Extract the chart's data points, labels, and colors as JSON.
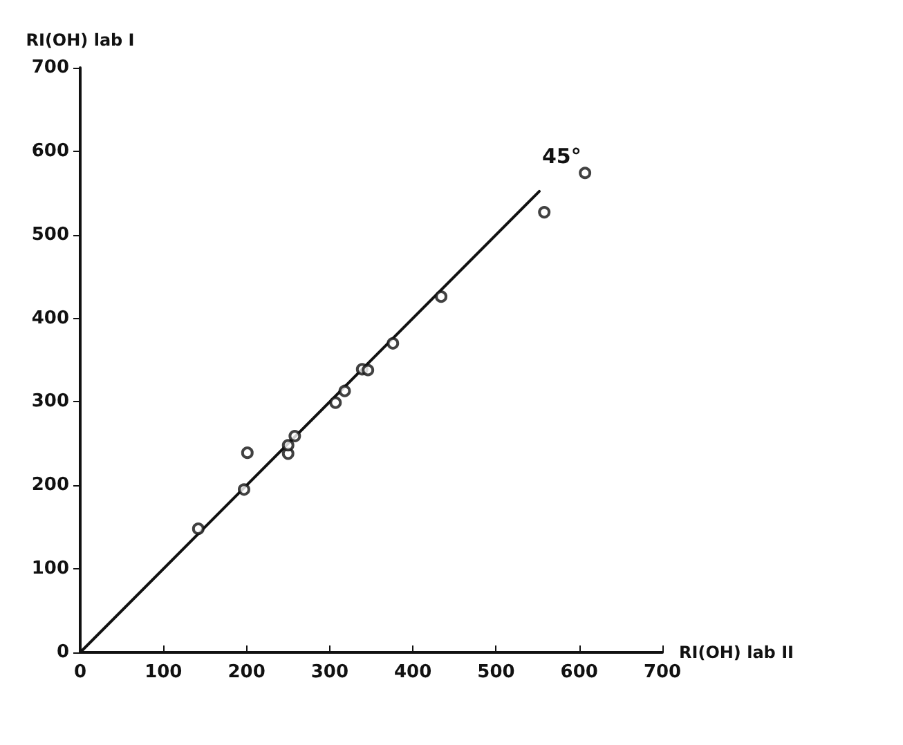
{
  "chart_data": {
    "type": "scatter",
    "ylabel": "RI(OH) lab I",
    "xlabel": "RI(OH) lab II",
    "xlim": [
      0,
      700
    ],
    "xticks": [
      0,
      100,
      200,
      300,
      400,
      500,
      600,
      700
    ],
    "ylim": [
      0,
      700
    ],
    "yticks": [
      0,
      100,
      200,
      300,
      400,
      500,
      600,
      700
    ],
    "grid": false,
    "series": [
      {
        "marker": "circle",
        "color": "#111111",
        "x": [
          142,
          197,
          201,
          250,
          250,
          258,
          307,
          318,
          339,
          346,
          376,
          434,
          558,
          607
        ],
        "values": [
          148,
          195,
          239,
          238,
          248,
          259,
          299,
          313,
          339,
          338,
          370,
          426,
          527,
          574
        ]
      },
      {
        "type": "line",
        "marker": "none",
        "color": "#111111",
        "line_style": "solid",
        "x": [
          0,
          552
        ],
        "values": [
          0,
          552
        ]
      }
    ],
    "annotations": [
      {
        "text": "45°",
        "x": 552,
        "y": 552
      }
    ]
  }
}
